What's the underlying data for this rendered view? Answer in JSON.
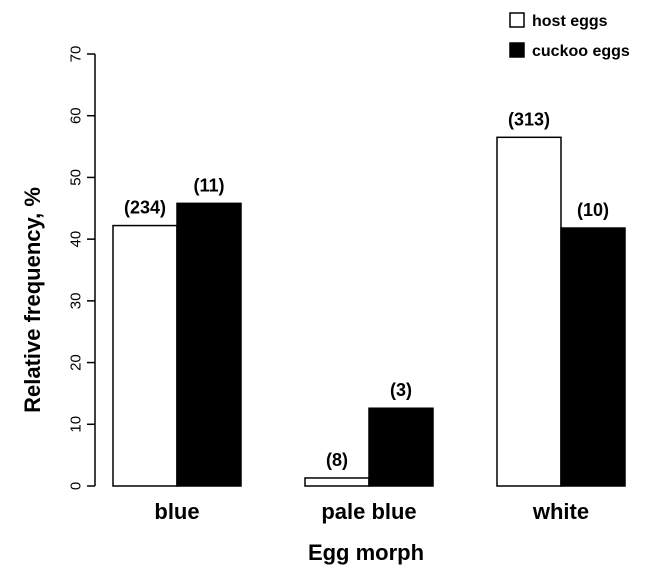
{
  "chart_data": {
    "type": "bar",
    "categories": [
      "blue",
      "pale blue",
      "white"
    ],
    "series": [
      {
        "name": "host eggs",
        "values": [
          42.2,
          1.3,
          56.5
        ],
        "labels": [
          "(234)",
          "(8)",
          "(313)"
        ],
        "color": "#ffffff"
      },
      {
        "name": "cuckoo eggs",
        "values": [
          45.8,
          12.6,
          41.8
        ],
        "labels": [
          "(11)",
          "(3)",
          "(10)"
        ],
        "color": "#000000"
      }
    ],
    "title": "",
    "xlabel": "Egg morph",
    "ylabel": "Relative frequency, %",
    "ylim": [
      0,
      70
    ],
    "yticks": [
      0,
      10,
      20,
      30,
      40,
      50,
      60,
      70
    ],
    "grid": false,
    "legend_position": "top-right"
  }
}
